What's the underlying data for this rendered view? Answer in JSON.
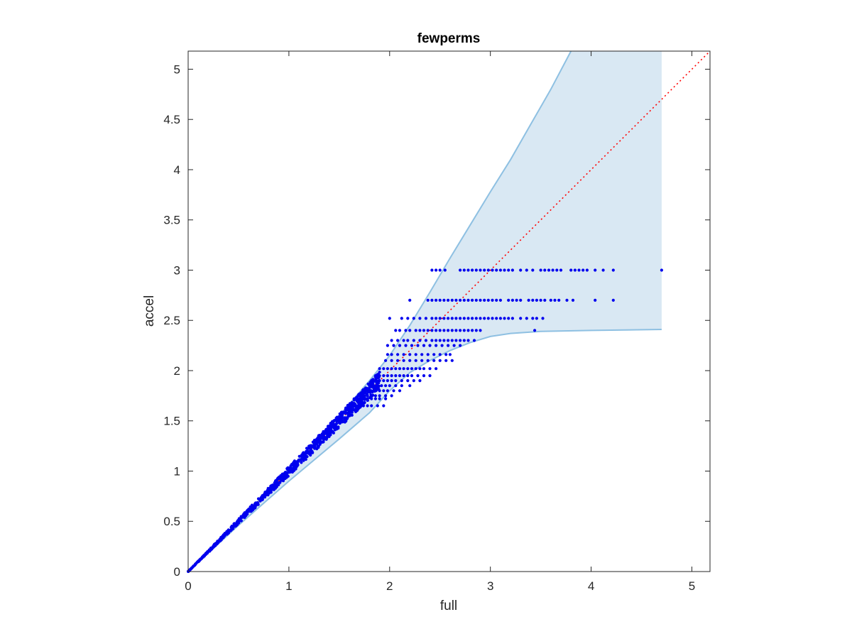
{
  "chart_data": {
    "type": "scatter",
    "title": "fewperms",
    "xlabel": "full",
    "ylabel": "accel",
    "xlim": [
      0,
      5.18
    ],
    "ylim": [
      0,
      5.18
    ],
    "xticks": [
      0,
      1,
      2,
      3,
      4,
      5
    ],
    "yticks": [
      0,
      0.5,
      1,
      1.5,
      2,
      2.5,
      3,
      3.5,
      4,
      4.5,
      5
    ],
    "xtick_labels": [
      "0",
      "1",
      "2",
      "3",
      "4",
      "5"
    ],
    "ytick_labels": [
      "0",
      "0.5",
      "1",
      "1.5",
      "2",
      "2.5",
      "3",
      "3.5",
      "4",
      "4.5",
      "5"
    ],
    "grid": false,
    "legend": "none",
    "colors": {
      "points": "#0000ee",
      "band_fill": "#d9e8f3",
      "band_edge": "#8ec0e2",
      "reference_line": "#ff0000",
      "axes": "#262626"
    },
    "reference_line": {
      "type": "y=x",
      "style": "dotted"
    },
    "confidence_band": {
      "x_end": 4.7,
      "upper": [
        [
          0,
          0
        ],
        [
          0.5,
          0.5
        ],
        [
          1,
          1.01
        ],
        [
          1.5,
          1.55
        ],
        [
          1.8,
          1.9
        ],
        [
          2.0,
          2.15
        ],
        [
          2.2,
          2.45
        ],
        [
          2.4,
          2.78
        ],
        [
          2.6,
          3.12
        ],
        [
          2.8,
          3.45
        ],
        [
          3.0,
          3.78
        ],
        [
          3.2,
          4.1
        ],
        [
          3.4,
          4.45
        ],
        [
          3.6,
          4.8
        ],
        [
          3.8,
          5.18
        ],
        [
          4.7,
          5.18
        ]
      ],
      "lower": [
        [
          0,
          0
        ],
        [
          0.5,
          0.46
        ],
        [
          1,
          0.9
        ],
        [
          1.5,
          1.32
        ],
        [
          1.8,
          1.58
        ],
        [
          2.0,
          1.8
        ],
        [
          2.2,
          1.98
        ],
        [
          2.4,
          2.1
        ],
        [
          2.6,
          2.2
        ],
        [
          2.8,
          2.28
        ],
        [
          3.0,
          2.34
        ],
        [
          3.2,
          2.37
        ],
        [
          3.5,
          2.39
        ],
        [
          4.0,
          2.4
        ],
        [
          4.7,
          2.41
        ]
      ]
    },
    "series": [
      {
        "marker": "dot",
        "diagonal_cluster": {
          "x_range": [
            0,
            1.9
          ],
          "relative_spread": 0.045,
          "count": 900
        },
        "level_rows": [
          {
            "y": 3.0,
            "x": [
              2.42,
              2.46,
              2.5,
              2.55,
              2.7,
              2.74,
              2.78,
              2.82,
              2.86,
              2.9,
              2.94,
              2.98,
              3.02,
              3.06,
              3.1,
              3.14,
              3.18,
              3.22,
              3.3,
              3.36,
              3.42,
              3.5,
              3.54,
              3.58,
              3.62,
              3.66,
              3.7,
              3.8,
              3.84,
              3.88,
              3.92,
              3.96,
              4.04,
              4.12,
              4.22,
              4.7
            ]
          },
          {
            "y": 2.7,
            "x": [
              2.2,
              2.38,
              2.42,
              2.46,
              2.5,
              2.54,
              2.58,
              2.62,
              2.66,
              2.7,
              2.74,
              2.78,
              2.82,
              2.86,
              2.9,
              2.94,
              2.98,
              3.02,
              3.06,
              3.1,
              3.18,
              3.22,
              3.26,
              3.3,
              3.38,
              3.42,
              3.46,
              3.5,
              3.54,
              3.6,
              3.64,
              3.68,
              3.76,
              3.82,
              4.04,
              4.22
            ]
          },
          {
            "y": 2.52,
            "x": [
              2.0,
              2.12,
              2.18,
              2.24,
              2.3,
              2.36,
              2.42,
              2.46,
              2.5,
              2.54,
              2.58,
              2.62,
              2.66,
              2.7,
              2.74,
              2.78,
              2.82,
              2.86,
              2.9,
              2.94,
              2.98,
              3.02,
              3.06,
              3.1,
              3.14,
              3.18,
              3.22,
              3.3,
              3.36,
              3.42,
              3.46,
              3.52
            ]
          },
          {
            "y": 2.4,
            "x": [
              2.06,
              2.1,
              2.16,
              2.2,
              2.26,
              2.3,
              2.34,
              2.38,
              2.42,
              2.46,
              2.5,
              2.54,
              2.58,
              2.62,
              2.66,
              2.7,
              2.74,
              2.78,
              2.82,
              2.86,
              2.9,
              3.44
            ]
          },
          {
            "y": 2.3,
            "x": [
              2.02,
              2.08,
              2.14,
              2.18,
              2.24,
              2.3,
              2.36,
              2.42,
              2.46,
              2.5,
              2.54,
              2.58,
              2.62,
              2.66,
              2.7,
              2.74,
              2.78,
              2.84
            ]
          },
          {
            "y": 2.25,
            "x": [
              1.98,
              2.04,
              2.1,
              2.16,
              2.22,
              2.28,
              2.34,
              2.4,
              2.46,
              2.52,
              2.58,
              2.64,
              2.7
            ]
          },
          {
            "y": 2.16,
            "x": [
              1.98,
              2.02,
              2.08,
              2.14,
              2.2,
              2.26,
              2.32,
              2.38,
              2.44,
              2.5,
              2.56,
              2.6
            ]
          },
          {
            "y": 2.1,
            "x": [
              1.96,
              2.02,
              2.08,
              2.14,
              2.2,
              2.26,
              2.32,
              2.38,
              2.44,
              2.5,
              2.56,
              2.62
            ]
          },
          {
            "y": 2.02,
            "x": [
              1.9,
              1.94,
              1.98,
              2.02,
              2.06,
              2.1,
              2.14,
              2.18,
              2.22,
              2.26,
              2.3,
              2.34,
              2.4,
              2.46
            ]
          },
          {
            "y": 1.95,
            "x": [
              1.86,
              1.9,
              1.94,
              1.98,
              2.02,
              2.06,
              2.1,
              2.14,
              2.18,
              2.22,
              2.28,
              2.34,
              2.4
            ]
          },
          {
            "y": 1.9,
            "x": [
              1.82,
              1.86,
              1.9,
              1.94,
              1.98,
              2.02,
              2.06,
              2.12,
              2.18,
              2.24,
              2.3
            ]
          },
          {
            "y": 1.85,
            "x": [
              1.8,
              1.84,
              1.88,
              1.92,
              1.96,
              2.0,
              2.06,
              2.12,
              2.2
            ]
          },
          {
            "y": 1.8,
            "x": [
              1.78,
              1.82,
              1.86,
              1.9,
              1.94,
              1.98,
              2.04,
              2.1
            ]
          },
          {
            "y": 1.75,
            "x": [
              1.74,
              1.78,
              1.82,
              1.86,
              1.9,
              1.96,
              2.02
            ]
          },
          {
            "y": 1.72,
            "x": [
              1.7,
              1.74,
              1.78,
              1.82,
              1.86,
              1.9,
              1.96
            ]
          },
          {
            "y": 1.65,
            "x": [
              1.66,
              1.7,
              1.74,
              1.78,
              1.82,
              1.88,
              1.94
            ]
          }
        ]
      }
    ]
  }
}
